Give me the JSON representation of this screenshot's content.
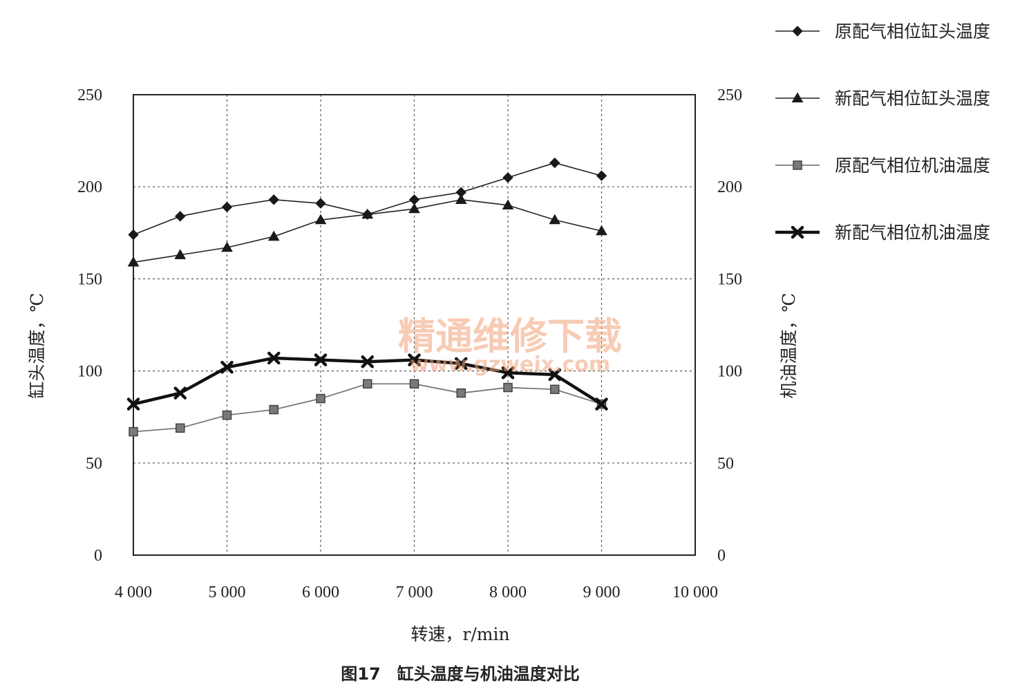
{
  "chart_data": {
    "type": "line",
    "title": "",
    "caption": "图17　缸头温度与机油温度对比",
    "xlabel": "转速，r/min",
    "ylabel": "缸头温度，℃",
    "y2label": "机油温度，℃",
    "xlim": [
      4000,
      10000
    ],
    "ylim": [
      0,
      250
    ],
    "y2lim": [
      0,
      250
    ],
    "x_ticks": [
      4000,
      5000,
      6000,
      7000,
      8000,
      9000,
      10000
    ],
    "x_tick_labels": [
      "4 000",
      "5 000",
      "6 000",
      "7 000",
      "8 000",
      "9 000",
      "10 000"
    ],
    "y_ticks": [
      0,
      50,
      100,
      150,
      200,
      250
    ],
    "y_tick_labels": [
      "0",
      "50",
      "100",
      "150",
      "200",
      "250"
    ],
    "y2_tick_labels": [
      "0",
      "50",
      "100",
      "150",
      "200",
      "250"
    ],
    "grid": true,
    "legend_position": "top-right",
    "x": [
      4000,
      4500,
      5000,
      5500,
      6000,
      6500,
      7000,
      7500,
      8000,
      8500,
      9000
    ],
    "series": [
      {
        "name": "原配气相位缸头温度",
        "marker": "diamond",
        "color": "#1a1a1a",
        "values": [
          174,
          184,
          189,
          193,
          191,
          185,
          193,
          197,
          205,
          213,
          206
        ]
      },
      {
        "name": "新配气相位缸头温度",
        "marker": "triangle",
        "color": "#1a1a1a",
        "values": [
          159,
          163,
          167,
          173,
          182,
          185,
          188,
          193,
          190,
          182,
          176
        ]
      },
      {
        "name": "原配气相位机油温度",
        "marker": "square",
        "color": "#666666",
        "values": [
          67,
          69,
          76,
          79,
          85,
          93,
          93,
          88,
          91,
          90,
          82
        ]
      },
      {
        "name": "新配气相位机油温度",
        "marker": "x",
        "color": "#111111",
        "values": [
          82,
          88,
          102,
          107,
          106,
          105,
          106,
          104,
          99,
          98,
          82
        ]
      }
    ]
  },
  "watermark": {
    "line1": "精通维修下载",
    "line2": "www.gzweix.com"
  }
}
